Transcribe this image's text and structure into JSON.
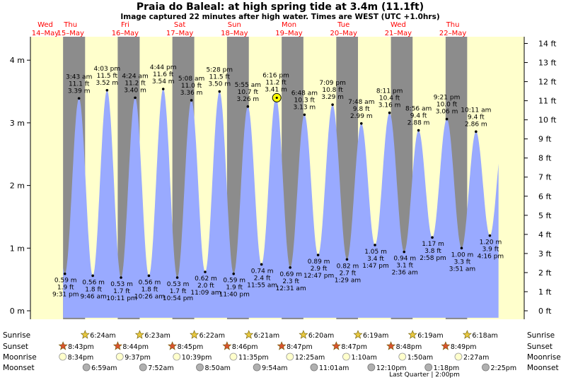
{
  "title": "Praia do Baleal: at high  spring tide at 3.4m (11.1ft)",
  "subtitle": "Image captured 22 minutes after high water. Times are WEST (UTC +1.0hrs)",
  "colors": {
    "day_background": "#ffffcc",
    "night_background": "#8c8c8c",
    "tide_fill": "#99aaff",
    "day_label": "#ff0000",
    "text": "#000000"
  },
  "days": [
    {
      "dow": "Wed",
      "date": "14–May"
    },
    {
      "dow": "Thu",
      "date": "15–May"
    },
    {
      "dow": "Fri",
      "date": "16–May"
    },
    {
      "dow": "Sat",
      "date": "17–May"
    },
    {
      "dow": "Sun",
      "date": "18–May"
    },
    {
      "dow": "Mon",
      "date": "19–May"
    },
    {
      "dow": "Tue",
      "date": "20–May"
    },
    {
      "dow": "Wed",
      "date": "21–May"
    },
    {
      "dow": "Thu",
      "date": "22–May"
    }
  ],
  "chart_data": {
    "type": "area",
    "title": "Praia do Baleal: at high  spring tide at 3.4m (11.1ft)",
    "y_left_ticks": [
      "0 m",
      "1 m",
      "2 m",
      "3 m",
      "4 m"
    ],
    "y_right_ticks": [
      "0 ft",
      "1 ft",
      "2 ft",
      "3 ft",
      "4 ft",
      "5 ft",
      "6 ft",
      "7 ft",
      "8 ft",
      "9 ft",
      "10 ft",
      "11 ft",
      "12 ft",
      "13 ft",
      "14 ft"
    ],
    "ylim_m": [
      -0.1,
      4.3
    ],
    "x_start": "2025-05-14 00:00",
    "x_end": "2025-05-22 23:59",
    "current_marker": {
      "time": "18–May 6:38pm",
      "height_m": 3.4
    },
    "tides": [
      {
        "type": "low",
        "time": "9:31 pm",
        "day": 0,
        "h": 21.52,
        "m": "0.59 m",
        "ft": "1.9 ft",
        "value": 0.59
      },
      {
        "type": "high",
        "time": "3:43 am",
        "day": 1,
        "h": 3.72,
        "m": "3.39 m",
        "ft": "11.1 ft",
        "value": 3.39
      },
      {
        "type": "low",
        "time": "9:46 am",
        "day": 1,
        "h": 9.77,
        "m": "0.56 m",
        "ft": "1.8 ft",
        "value": 0.56
      },
      {
        "type": "high",
        "time": "4:03 pm",
        "day": 1,
        "h": 16.05,
        "m": "3.52 m",
        "ft": "11.5 ft",
        "value": 3.52
      },
      {
        "type": "low",
        "time": "10:11 pm",
        "day": 1,
        "h": 22.18,
        "m": "0.53 m",
        "ft": "1.7 ft",
        "value": 0.53
      },
      {
        "type": "high",
        "time": "4:24 am",
        "day": 2,
        "h": 4.4,
        "m": "3.40 m",
        "ft": "11.2 ft",
        "value": 3.4
      },
      {
        "type": "low",
        "time": "10:26 am",
        "day": 2,
        "h": 10.43,
        "m": "0.56 m",
        "ft": "1.8 ft",
        "value": 0.56
      },
      {
        "type": "high",
        "time": "4:44 pm",
        "day": 2,
        "h": 16.73,
        "m": "3.54 m",
        "ft": "11.6 ft",
        "value": 3.54
      },
      {
        "type": "low",
        "time": "10:54 pm",
        "day": 2,
        "h": 22.9,
        "m": "0.53 m",
        "ft": "1.7 ft",
        "value": 0.53
      },
      {
        "type": "high",
        "time": "5:08 am",
        "day": 3,
        "h": 5.13,
        "m": "3.36 m",
        "ft": "11.0 ft",
        "value": 3.36
      },
      {
        "type": "low",
        "time": "11:09 am",
        "day": 3,
        "h": 11.15,
        "m": "0.62 m",
        "ft": "2.0 ft",
        "value": 0.62
      },
      {
        "type": "high",
        "time": "5:28 pm",
        "day": 3,
        "h": 17.47,
        "m": "3.50 m",
        "ft": "11.5 ft",
        "value": 3.5
      },
      {
        "type": "low",
        "time": "11:40 pm",
        "day": 3,
        "h": 23.67,
        "m": "0.59 m",
        "ft": "1.9 ft",
        "value": 0.59
      },
      {
        "type": "high",
        "time": "5:55 am",
        "day": 4,
        "h": 5.92,
        "m": "3.26 m",
        "ft": "10.7 ft",
        "value": 3.26
      },
      {
        "type": "low",
        "time": "11:55 am",
        "day": 4,
        "h": 11.92,
        "m": "0.74 m",
        "ft": "2.4 ft",
        "value": 0.74
      },
      {
        "type": "high",
        "time": "6:16 pm",
        "day": 4,
        "h": 18.27,
        "m": "3.41 m",
        "ft": "11.2 ft",
        "value": 3.41
      },
      {
        "type": "low",
        "time": "12:31 am",
        "day": 5,
        "h": 0.52,
        "m": "0.69 m",
        "ft": "2.3 ft",
        "value": 0.69
      },
      {
        "type": "high",
        "time": "6:48 am",
        "day": 5,
        "h": 6.8,
        "m": "3.13 m",
        "ft": "10.3 ft",
        "value": 3.13
      },
      {
        "type": "low",
        "time": "12:47 pm",
        "day": 5,
        "h": 12.78,
        "m": "0.89 m",
        "ft": "2.9 ft",
        "value": 0.89
      },
      {
        "type": "high",
        "time": "7:09 pm",
        "day": 5,
        "h": 19.15,
        "m": "3.29 m",
        "ft": "10.8 ft",
        "value": 3.29
      },
      {
        "type": "low",
        "time": "1:29 am",
        "day": 6,
        "h": 1.48,
        "m": "0.82 m",
        "ft": "2.7 ft",
        "value": 0.82
      },
      {
        "type": "high",
        "time": "7:48 am",
        "day": 6,
        "h": 7.8,
        "m": "2.99 m",
        "ft": "9.8 ft",
        "value": 2.99
      },
      {
        "type": "low",
        "time": "1:47 pm",
        "day": 6,
        "h": 13.78,
        "m": "1.05 m",
        "ft": "3.4 ft",
        "value": 1.05
      },
      {
        "type": "high",
        "time": "8:11 pm",
        "day": 6,
        "h": 20.18,
        "m": "3.16 m",
        "ft": "10.4 ft",
        "value": 3.16
      },
      {
        "type": "low",
        "time": "2:36 am",
        "day": 7,
        "h": 2.6,
        "m": "0.94 m",
        "ft": "3.1 ft",
        "value": 0.94
      },
      {
        "type": "high",
        "time": "8:56 am",
        "day": 7,
        "h": 8.93,
        "m": "2.88 m",
        "ft": "9.4 ft",
        "value": 2.88
      },
      {
        "type": "low",
        "time": "2:58 pm",
        "day": 7,
        "h": 14.97,
        "m": "1.17 m",
        "ft": "3.8 ft",
        "value": 1.17
      },
      {
        "type": "high",
        "time": "9:21 pm",
        "day": 7,
        "h": 21.35,
        "m": "3.06 m",
        "ft": "10.0 ft",
        "value": 3.06
      },
      {
        "type": "low",
        "time": "3:51 am",
        "day": 8,
        "h": 3.85,
        "m": "1.00 m",
        "ft": "3.3 ft",
        "value": 1.0
      },
      {
        "type": "high",
        "time": "10:11 am",
        "day": 8,
        "h": 10.18,
        "m": "2.86 m",
        "ft": "9.4 ft",
        "value": 2.86
      },
      {
        "type": "low",
        "time": "4:16 pm",
        "day": 8,
        "h": 16.27,
        "m": "1.20 m",
        "ft": "3.9 ft",
        "value": 1.2
      }
    ]
  },
  "bottom": {
    "row_labels": [
      "Sunrise",
      "Sunset",
      "Moonrise",
      "Moonset"
    ],
    "sunrise": [
      {
        "day": 1,
        "h": 6.4,
        "text": "6:24am"
      },
      {
        "day": 2,
        "h": 6.38,
        "text": "6:23am"
      },
      {
        "day": 3,
        "h": 6.37,
        "text": "6:22am"
      },
      {
        "day": 4,
        "h": 6.35,
        "text": "6:21am"
      },
      {
        "day": 5,
        "h": 6.33,
        "text": "6:20am"
      },
      {
        "day": 6,
        "h": 6.32,
        "text": "6:19am"
      },
      {
        "day": 7,
        "h": 6.32,
        "text": "6:19am"
      },
      {
        "day": 8,
        "h": 6.3,
        "text": "6:18am"
      }
    ],
    "sunset": [
      {
        "day": 0,
        "h": 20.72,
        "text": "8:43pm"
      },
      {
        "day": 1,
        "h": 20.73,
        "text": "8:44pm"
      },
      {
        "day": 2,
        "h": 20.75,
        "text": "8:45pm"
      },
      {
        "day": 3,
        "h": 20.77,
        "text": "8:46pm"
      },
      {
        "day": 4,
        "h": 20.78,
        "text": "8:47pm"
      },
      {
        "day": 5,
        "h": 20.78,
        "text": "8:47pm"
      },
      {
        "day": 6,
        "h": 20.8,
        "text": "8:48pm"
      },
      {
        "day": 7,
        "h": 20.82,
        "text": "8:49pm"
      }
    ],
    "moonrise": [
      {
        "day": 0,
        "h": 20.57,
        "text": "8:34pm"
      },
      {
        "day": 1,
        "h": 21.62,
        "text": "9:37pm"
      },
      {
        "day": 2,
        "h": 22.65,
        "text": "10:39pm"
      },
      {
        "day": 3,
        "h": 23.58,
        "text": "11:35pm"
      },
      {
        "day": 5,
        "h": 0.42,
        "text": "12:25am"
      },
      {
        "day": 6,
        "h": 1.17,
        "text": "1:10am"
      },
      {
        "day": 7,
        "h": 1.83,
        "text": "1:50am"
      },
      {
        "day": 8,
        "h": 2.45,
        "text": "2:27am"
      }
    ],
    "moonset": [
      {
        "day": 1,
        "h": 6.98,
        "text": "6:59am"
      },
      {
        "day": 2,
        "h": 7.87,
        "text": "7:52am"
      },
      {
        "day": 3,
        "h": 8.83,
        "text": "8:50am"
      },
      {
        "day": 4,
        "h": 9.9,
        "text": "9:54am"
      },
      {
        "day": 5,
        "h": 11.02,
        "text": "11:01am"
      },
      {
        "day": 6,
        "h": 12.17,
        "text": "12:10pm"
      },
      {
        "day": 7,
        "h": 13.3,
        "text": "1:18pm"
      },
      {
        "day": 8,
        "h": 14.42,
        "text": "2:25pm"
      }
    ],
    "moon_phase": "Last Quarter | 2:00pm"
  }
}
